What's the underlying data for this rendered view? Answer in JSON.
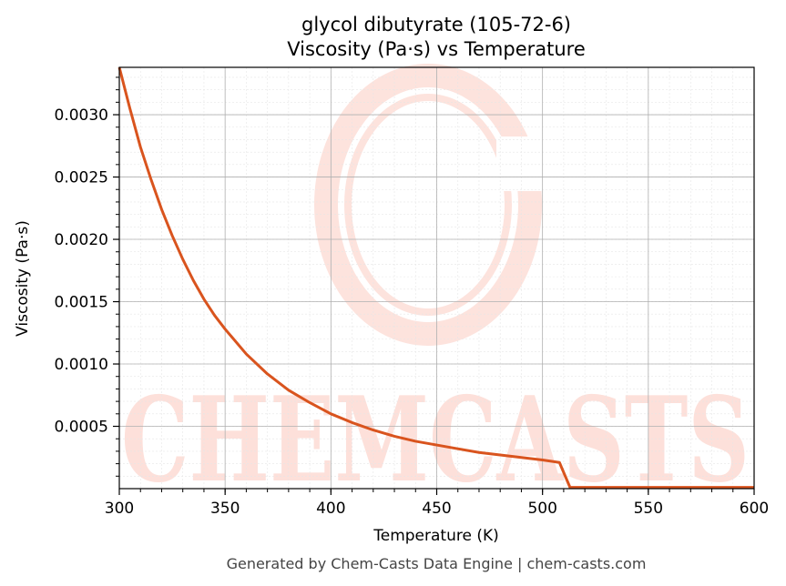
{
  "chart_data": {
    "type": "line",
    "title_line1": "glycol dibutyrate (105-72-6)",
    "title_line2": "Viscosity (Pa·s) vs Temperature",
    "xlabel": "Temperature (K)",
    "ylabel": "Viscosity (Pa·s)",
    "xlim": [
      300,
      600
    ],
    "ylim": [
      0,
      0.00338
    ],
    "xticks": [
      300,
      350,
      400,
      450,
      500,
      550,
      600
    ],
    "xtick_labels": [
      "300",
      "350",
      "400",
      "450",
      "500",
      "550",
      "600"
    ],
    "yticks": [
      0.0005,
      0.001,
      0.0015,
      0.002,
      0.0025,
      0.003
    ],
    "ytick_labels": [
      "0.0005",
      "0.0010",
      "0.0015",
      "0.0020",
      "0.0025",
      "0.0030"
    ],
    "grid": true,
    "line_color": "#d9541e",
    "series": [
      {
        "x": [
          300,
          305,
          310,
          315,
          320,
          325,
          330,
          335,
          340,
          345,
          350,
          360,
          370,
          380,
          390,
          400,
          410,
          420,
          430,
          440,
          450,
          460,
          470,
          480,
          490,
          500,
          508,
          513,
          520,
          550,
          600
        ],
        "values": [
          0.00338,
          0.00305,
          0.00274,
          0.00248,
          0.00224,
          0.00203,
          0.00184,
          0.00167,
          0.00152,
          0.00139,
          0.00128,
          0.00108,
          0.00092,
          0.00079,
          0.00069,
          0.0006,
          0.00053,
          0.00047,
          0.00042,
          0.00038,
          0.00035,
          0.00032,
          0.00029,
          0.00027,
          0.00025,
          0.00023,
          0.00021,
          1e-05,
          1e-05,
          1e-05,
          1e-05
        ]
      }
    ]
  },
  "watermark": {
    "text": "CHEMCASTS",
    "color": "#fde0da"
  },
  "footer": "Generated by Chem-Casts Data Engine | chem-casts.com"
}
